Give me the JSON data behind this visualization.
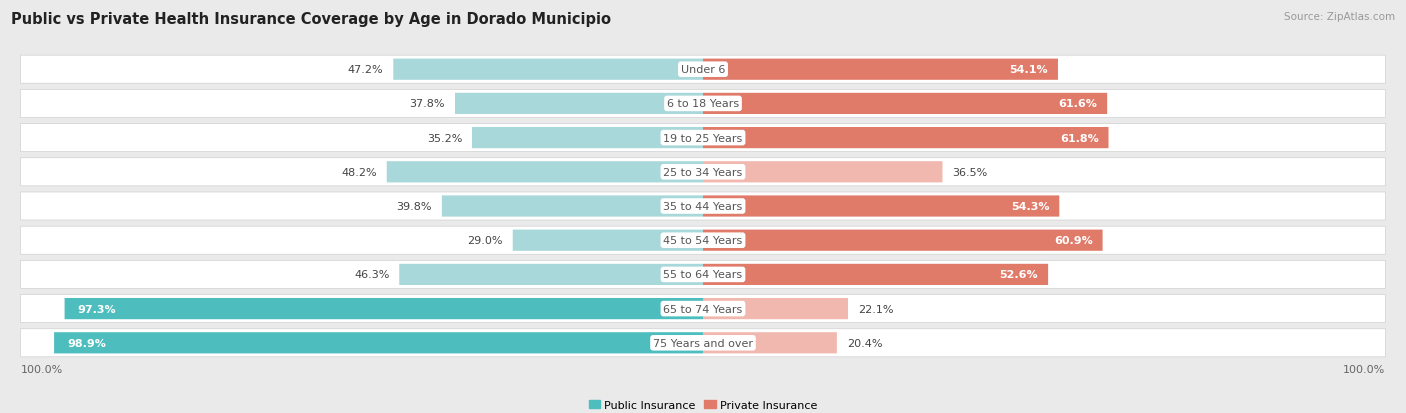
{
  "title": "Public vs Private Health Insurance Coverage by Age in Dorado Municipio",
  "source": "Source: ZipAtlas.com",
  "categories": [
    "Under 6",
    "6 to 18 Years",
    "19 to 25 Years",
    "25 to 34 Years",
    "35 to 44 Years",
    "45 to 54 Years",
    "55 to 64 Years",
    "65 to 74 Years",
    "75 Years and over"
  ],
  "public_values": [
    47.2,
    37.8,
    35.2,
    48.2,
    39.8,
    29.0,
    46.3,
    97.3,
    98.9
  ],
  "private_values": [
    54.1,
    61.6,
    61.8,
    36.5,
    54.3,
    60.9,
    52.6,
    22.1,
    20.4
  ],
  "public_color": "#4dbdbe",
  "private_color": "#e07b6a",
  "public_color_light": "#a8d8d9",
  "private_color_light": "#f0b8ae",
  "bg_color": "#eaeaea",
  "row_bg_color": "#f5f5f5",
  "title_fontsize": 10.5,
  "label_fontsize": 8,
  "value_fontsize": 8,
  "tick_fontsize": 8,
  "source_fontsize": 7.5,
  "legend_fontsize": 8
}
